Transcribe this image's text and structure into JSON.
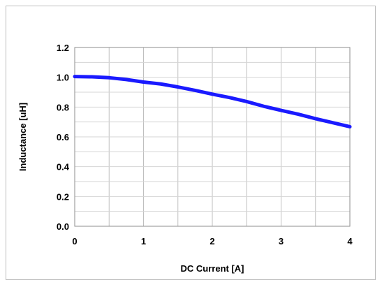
{
  "chart_data": {
    "type": "line",
    "title": "",
    "xlabel": "DC Current [A]",
    "ylabel": "Inductance [uH]",
    "xlim": [
      0,
      4
    ],
    "ylim": [
      0,
      1.2
    ],
    "x_ticks": [
      0,
      1,
      2,
      3,
      4
    ],
    "y_ticks": [
      0.0,
      0.2,
      0.4,
      0.6,
      0.8,
      1.0,
      1.2
    ],
    "x_tick_labels": [
      "0",
      "1",
      "2",
      "3",
      "4"
    ],
    "y_tick_labels": [
      "0.0",
      "0.2",
      "0.4",
      "0.6",
      "0.8",
      "1.0",
      "1.2"
    ],
    "grid": true,
    "legend": "none",
    "series": [
      {
        "color": "#1a1aff",
        "x": [
          0.0,
          0.25,
          0.5,
          0.75,
          1.0,
          1.25,
          1.5,
          1.75,
          2.0,
          2.25,
          2.5,
          2.75,
          3.0,
          3.25,
          3.5,
          3.75,
          4.0
        ],
        "y": [
          1.005,
          1.003,
          0.997,
          0.985,
          0.968,
          0.955,
          0.935,
          0.912,
          0.887,
          0.864,
          0.837,
          0.805,
          0.778,
          0.752,
          0.722,
          0.695,
          0.668
        ]
      }
    ]
  }
}
